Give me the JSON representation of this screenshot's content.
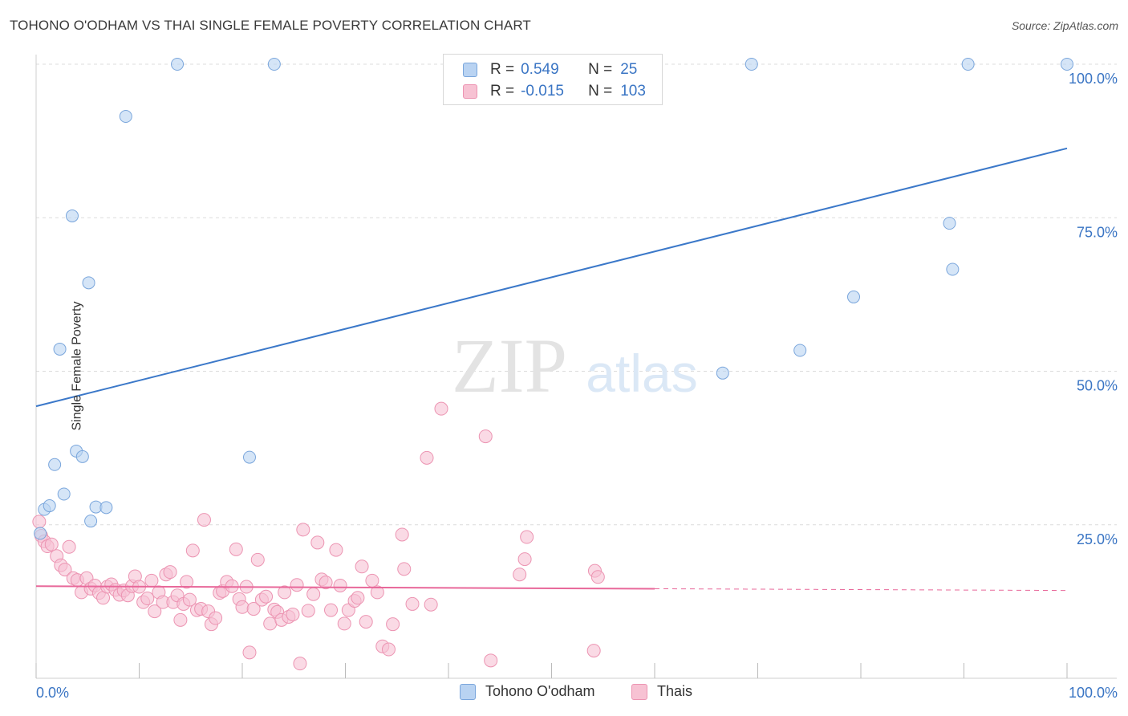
{
  "title": "TOHONO O'ODHAM VS THAI SINGLE FEMALE POVERTY CORRELATION CHART",
  "source": "Source: ZipAtlas.com",
  "watermark": {
    "zip": "ZIP",
    "atlas": "atlas"
  },
  "colors": {
    "blue_fill": "#b9d3f2",
    "blue_stroke": "#7aa6dc",
    "blue_line": "#3b78c9",
    "pink_fill": "#f7c2d3",
    "pink_stroke": "#ec94b2",
    "pink_line": "#e8689a",
    "axis_text": "#3a75c4",
    "grid": "#dcdcdc"
  },
  "legend_top": [
    {
      "series": "Tohono O'odham",
      "r_label": "R =",
      "r_value": "0.549",
      "n_label": "N =",
      "n_value": "25"
    },
    {
      "series": "Thais",
      "r_label": "R =",
      "r_value": "-0.015",
      "n_label": "N =",
      "n_value": "103"
    }
  ],
  "legend_bottom": [
    "Tohono O'odham",
    "Thais"
  ],
  "chart_data": {
    "type": "scatter",
    "title": "TOHONO O'ODHAM VS THAI SINGLE FEMALE POVERTY CORRELATION CHART",
    "xlabel": "",
    "ylabel": "Single Female Poverty",
    "xlim": [
      0,
      100
    ],
    "ylim": [
      0,
      100
    ],
    "x_tick_labels": [
      {
        "value": 0,
        "label": "0.0%"
      },
      {
        "value": 100,
        "label": "100.0%"
      }
    ],
    "y_tick_labels": [
      {
        "value": 25,
        "label": "25.0%"
      },
      {
        "value": 50,
        "label": "50.0%"
      },
      {
        "value": 75,
        "label": "75.0%"
      },
      {
        "value": 100,
        "label": "100.0%"
      }
    ],
    "grid": "horizontal dashed",
    "series": [
      {
        "name": "Tohono O'odham",
        "color": "blue",
        "trend": {
          "x0": 0,
          "y0": 44.3,
          "x1": 100,
          "y1": 86.3,
          "dashed_from": null
        },
        "points": [
          [
            0.4,
            23.6
          ],
          [
            0.8,
            27.5
          ],
          [
            1.3,
            28.1
          ],
          [
            1.8,
            34.8
          ],
          [
            2.3,
            53.6
          ],
          [
            2.7,
            30.0
          ],
          [
            3.5,
            75.3
          ],
          [
            3.9,
            37.0
          ],
          [
            4.5,
            36.1
          ],
          [
            5.1,
            64.4
          ],
          [
            5.3,
            25.6
          ],
          [
            5.8,
            27.9
          ],
          [
            6.8,
            27.8
          ],
          [
            8.7,
            91.5
          ],
          [
            13.7,
            100
          ],
          [
            20.7,
            36.0
          ],
          [
            23.1,
            100
          ],
          [
            66.6,
            49.7
          ],
          [
            69.4,
            100
          ],
          [
            74.1,
            53.4
          ],
          [
            79.3,
            62.1
          ],
          [
            88.6,
            74.1
          ],
          [
            88.9,
            66.6
          ],
          [
            90.4,
            100
          ],
          [
            100,
            100
          ]
        ]
      },
      {
        "name": "Thais",
        "color": "pink",
        "trend": {
          "x0": 0,
          "y0": 15.0,
          "x1": 100,
          "y1": 14.3,
          "dashed_from": 60
        },
        "points": [
          [
            0.3,
            25.5
          ],
          [
            0.5,
            23.2
          ],
          [
            0.8,
            22.3
          ],
          [
            1.1,
            21.5
          ],
          [
            1.5,
            21.8
          ],
          [
            2.0,
            19.9
          ],
          [
            2.4,
            18.4
          ],
          [
            2.8,
            17.7
          ],
          [
            3.2,
            21.4
          ],
          [
            3.6,
            16.3
          ],
          [
            4.0,
            16.0
          ],
          [
            4.4,
            14.0
          ],
          [
            4.9,
            16.3
          ],
          [
            5.3,
            14.6
          ],
          [
            5.7,
            15.1
          ],
          [
            6.1,
            13.9
          ],
          [
            6.5,
            13.1
          ],
          [
            6.9,
            14.9
          ],
          [
            7.3,
            15.3
          ],
          [
            7.7,
            14.4
          ],
          [
            8.1,
            13.6
          ],
          [
            8.5,
            14.3
          ],
          [
            8.9,
            13.5
          ],
          [
            9.3,
            15.0
          ],
          [
            9.6,
            16.6
          ],
          [
            10.0,
            14.9
          ],
          [
            10.4,
            12.4
          ],
          [
            10.8,
            13.0
          ],
          [
            11.2,
            15.9
          ],
          [
            11.5,
            10.9
          ],
          [
            11.9,
            14.0
          ],
          [
            12.3,
            12.4
          ],
          [
            12.6,
            16.9
          ],
          [
            13.0,
            17.3
          ],
          [
            13.3,
            12.4
          ],
          [
            13.7,
            13.5
          ],
          [
            14.0,
            9.5
          ],
          [
            14.3,
            12.1
          ],
          [
            14.6,
            15.7
          ],
          [
            14.9,
            12.8
          ],
          [
            15.2,
            20.8
          ],
          [
            15.6,
            11.1
          ],
          [
            16.0,
            11.3
          ],
          [
            16.3,
            25.8
          ],
          [
            16.7,
            10.9
          ],
          [
            17.0,
            8.8
          ],
          [
            17.4,
            9.8
          ],
          [
            17.8,
            13.9
          ],
          [
            18.1,
            14.2
          ],
          [
            18.5,
            15.7
          ],
          [
            19.0,
            15.0
          ],
          [
            19.4,
            21.0
          ],
          [
            19.7,
            12.9
          ],
          [
            20.0,
            11.6
          ],
          [
            20.4,
            14.9
          ],
          [
            20.7,
            4.2
          ],
          [
            21.1,
            11.3
          ],
          [
            21.5,
            19.3
          ],
          [
            21.9,
            12.8
          ],
          [
            22.3,
            13.3
          ],
          [
            22.7,
            8.9
          ],
          [
            23.1,
            11.2
          ],
          [
            23.4,
            10.8
          ],
          [
            23.8,
            9.5
          ],
          [
            24.1,
            14.0
          ],
          [
            24.5,
            10.0
          ],
          [
            24.9,
            10.4
          ],
          [
            25.3,
            15.2
          ],
          [
            25.6,
            2.4
          ],
          [
            25.9,
            24.2
          ],
          [
            26.4,
            11.0
          ],
          [
            26.9,
            13.7
          ],
          [
            27.3,
            22.1
          ],
          [
            27.7,
            16.1
          ],
          [
            28.1,
            15.6
          ],
          [
            28.6,
            11.1
          ],
          [
            29.1,
            20.9
          ],
          [
            29.5,
            15.1
          ],
          [
            29.9,
            8.9
          ],
          [
            30.3,
            11.1
          ],
          [
            30.9,
            12.6
          ],
          [
            31.2,
            13.1
          ],
          [
            31.6,
            18.2
          ],
          [
            32.0,
            9.2
          ],
          [
            32.6,
            15.9
          ],
          [
            33.1,
            14.0
          ],
          [
            33.6,
            5.2
          ],
          [
            34.2,
            4.7
          ],
          [
            34.6,
            8.8
          ],
          [
            35.5,
            23.4
          ],
          [
            35.7,
            17.8
          ],
          [
            36.5,
            12.1
          ],
          [
            37.9,
            35.9
          ],
          [
            38.3,
            12.0
          ],
          [
            39.3,
            43.9
          ],
          [
            43.6,
            39.4
          ],
          [
            44.1,
            2.9
          ],
          [
            46.9,
            16.9
          ],
          [
            47.4,
            19.4
          ],
          [
            47.6,
            23.0
          ],
          [
            54.1,
            4.5
          ],
          [
            54.2,
            17.5
          ],
          [
            54.5,
            16.5
          ]
        ]
      }
    ]
  }
}
